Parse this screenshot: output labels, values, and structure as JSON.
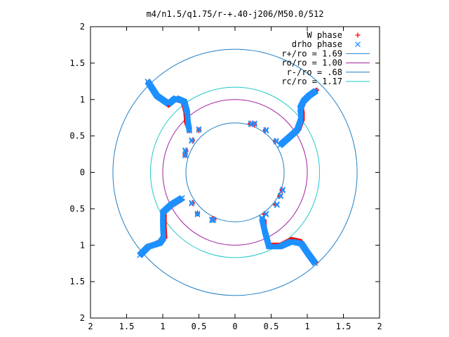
{
  "chart_data": {
    "type": "scatter",
    "title": "m4/n1.5/q1.75/r-+.40-j206/M50.0/512",
    "xlim": [
      -2,
      2
    ],
    "ylim": [
      -2,
      2
    ],
    "x_ticks": [
      {
        "v": -2,
        "label": "2"
      },
      {
        "v": -1.5,
        "label": "1.5"
      },
      {
        "v": -1,
        "label": "1"
      },
      {
        "v": -0.5,
        "label": "0.5"
      },
      {
        "v": 0,
        "label": "0"
      },
      {
        "v": 0.5,
        "label": "0.5"
      },
      {
        "v": 1,
        "label": "1"
      },
      {
        "v": 1.5,
        "label": "1.5"
      },
      {
        "v": 2,
        "label": "2"
      }
    ],
    "y_ticks": [
      {
        "v": 2,
        "label": "2"
      },
      {
        "v": 1.5,
        "label": "1.5"
      },
      {
        "v": 1,
        "label": "1"
      },
      {
        "v": 0.5,
        "label": "0.5"
      },
      {
        "v": 0,
        "label": "0"
      },
      {
        "v": -0.5,
        "label": "0.5"
      },
      {
        "v": -1,
        "label": "1"
      },
      {
        "v": -1.5,
        "label": "1.5"
      },
      {
        "v": -2,
        "label": "2"
      }
    ],
    "grid": false,
    "legend_position": "top-right",
    "series": [
      {
        "name": "W phase",
        "marker": "plus",
        "color": "#ff0000",
        "arms": [
          [
            [
              1.13,
              1.13
            ],
            [
              1.02,
              1.03
            ],
            [
              0.95,
              0.95
            ],
            [
              0.92,
              0.88
            ],
            [
              0.93,
              0.82
            ],
            [
              0.93,
              0.72
            ],
            [
              0.88,
              0.58
            ],
            [
              0.78,
              0.49
            ],
            [
              0.65,
              0.4
            ]
          ],
          [
            [
              -0.63,
              0.57
            ],
            [
              -0.67,
              0.68
            ],
            [
              -0.68,
              0.82
            ],
            [
              -0.72,
              0.97
            ],
            [
              -0.82,
              1.0
            ],
            [
              -0.92,
              0.92
            ],
            [
              -1.08,
              1.05
            ],
            [
              -1.2,
              1.24
            ]
          ],
          [
            [
              -1.3,
              -1.13
            ],
            [
              -1.2,
              -1.02
            ],
            [
              -1.04,
              -0.95
            ],
            [
              -0.97,
              -0.9
            ],
            [
              -0.98,
              -0.75
            ],
            [
              -0.98,
              -0.55
            ],
            [
              -0.86,
              -0.45
            ],
            [
              -0.73,
              -0.37
            ]
          ],
          [
            [
              1.12,
              -1.24
            ],
            [
              1.0,
              -1.08
            ],
            [
              0.92,
              -0.95
            ],
            [
              0.78,
              -0.92
            ],
            [
              0.62,
              -1.0
            ],
            [
              0.47,
              -1.0
            ],
            [
              0.41,
              -0.8
            ],
            [
              0.4,
              -0.65
            ]
          ]
        ],
        "inner_points": [
          [
            0.21,
            0.66
          ],
          [
            0.27,
            0.65
          ],
          [
            0.42,
            0.57
          ],
          [
            0.56,
            0.42
          ],
          [
            0.65,
            -0.25
          ],
          [
            0.62,
            -0.33
          ],
          [
            0.56,
            -0.45
          ],
          [
            0.41,
            -0.58
          ],
          [
            -0.29,
            -0.65
          ],
          [
            -0.31,
            -0.65
          ],
          [
            -0.52,
            -0.57
          ],
          [
            -0.59,
            -0.43
          ],
          [
            -0.68,
            0.29
          ],
          [
            -0.69,
            0.23
          ],
          [
            -0.59,
            0.43
          ],
          [
            -0.5,
            0.57
          ]
        ]
      },
      {
        "name": "drho phase",
        "marker": "cross",
        "color": "#1e90ff",
        "arms": [
          [
            [
              1.12,
              1.12
            ],
            [
              1.02,
              1.05
            ],
            [
              0.95,
              0.98
            ],
            [
              0.9,
              0.88
            ],
            [
              0.91,
              0.82
            ],
            [
              0.91,
              0.72
            ],
            [
              0.86,
              0.58
            ],
            [
              0.76,
              0.49
            ],
            [
              0.62,
              0.37
            ]
          ],
          [
            [
              -0.63,
              0.57
            ],
            [
              -0.65,
              0.68
            ],
            [
              -0.66,
              0.82
            ],
            [
              -0.7,
              0.97
            ],
            [
              -0.82,
              1.02
            ],
            [
              -0.92,
              0.94
            ],
            [
              -1.08,
              1.05
            ],
            [
              -1.21,
              1.25
            ]
          ],
          [
            [
              -1.32,
              -1.14
            ],
            [
              -1.2,
              -1.02
            ],
            [
              -1.04,
              -0.97
            ],
            [
              -0.99,
              -0.9
            ],
            [
              -1.0,
              -0.75
            ],
            [
              -1.0,
              -0.55
            ],
            [
              -0.88,
              -0.44
            ],
            [
              -0.73,
              -0.35
            ]
          ],
          [
            [
              1.11,
              -1.25
            ],
            [
              1.0,
              -1.1
            ],
            [
              0.92,
              -0.98
            ],
            [
              0.78,
              -0.95
            ],
            [
              0.62,
              -1.02
            ],
            [
              0.47,
              -1.02
            ],
            [
              0.41,
              -0.8
            ],
            [
              0.37,
              -0.62
            ]
          ]
        ],
        "inner_points": [
          [
            0.22,
            0.66
          ],
          [
            0.27,
            0.66
          ],
          [
            0.43,
            0.57
          ],
          [
            0.57,
            0.42
          ],
          [
            0.66,
            -0.25
          ],
          [
            0.63,
            -0.33
          ],
          [
            0.58,
            -0.45
          ],
          [
            0.43,
            -0.58
          ],
          [
            -0.3,
            -0.66
          ],
          [
            -0.32,
            -0.66
          ],
          [
            -0.52,
            -0.58
          ],
          [
            -0.6,
            -0.43
          ],
          [
            -0.69,
            0.29
          ],
          [
            -0.69,
            0.23
          ],
          [
            -0.6,
            0.43
          ],
          [
            -0.5,
            0.58
          ]
        ]
      },
      {
        "name": "r+/ro = 1.69",
        "type": "circle",
        "radius": 1.69,
        "color": "#1f7fc4"
      },
      {
        "name": "ro/ro = 1.00",
        "type": "circle",
        "radius": 1.0,
        "color": "#a020a0"
      },
      {
        "name": "r-/ro = .68",
        "type": "circle",
        "radius": 0.68,
        "color": "#1f7fc4"
      },
      {
        "name": "rc/ro = 1.17",
        "type": "circle",
        "radius": 1.17,
        "color": "#20c8c8"
      }
    ]
  }
}
